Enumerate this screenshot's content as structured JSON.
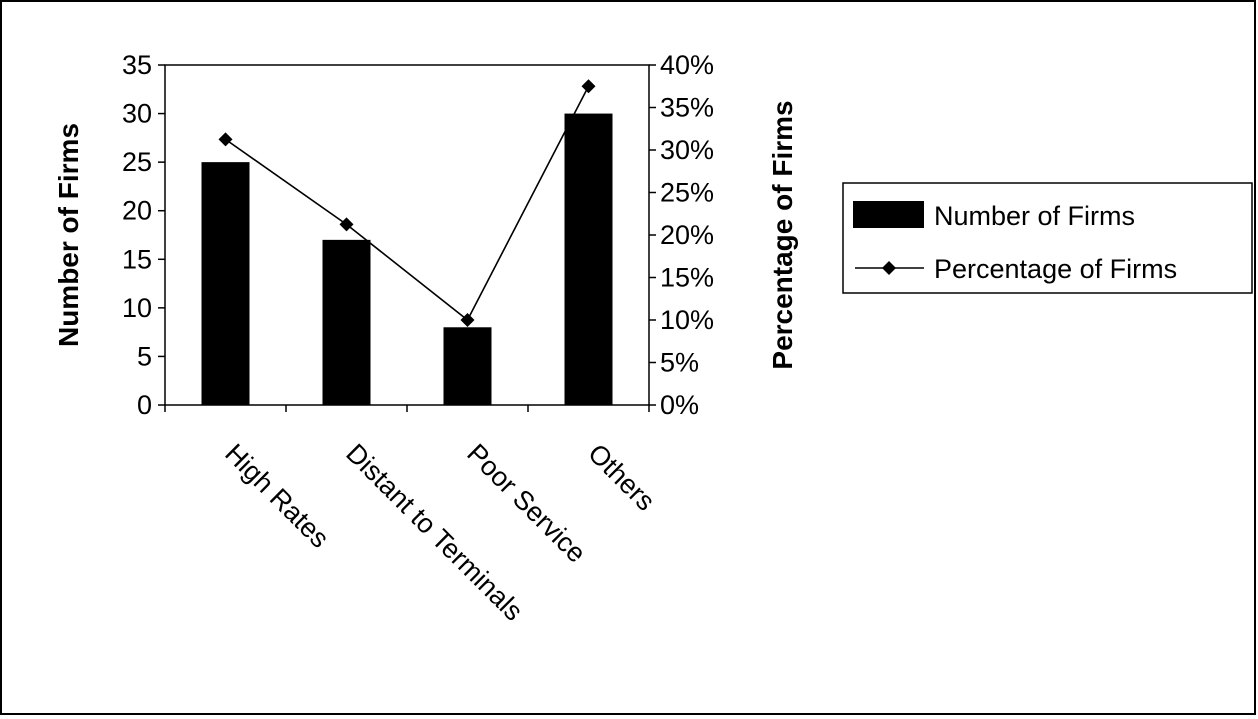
{
  "chart_data": {
    "type": "bar+line",
    "categories": [
      "High Rates",
      "Distant to Terminals",
      "Poor Service",
      "Others"
    ],
    "series": [
      {
        "name": "Number of Firms",
        "type": "bar",
        "axis": "left",
        "values": [
          25,
          17,
          8,
          30
        ],
        "color": "#000000"
      },
      {
        "name": "Percentage of Firms",
        "type": "line",
        "axis": "right",
        "values": [
          31.25,
          21.25,
          10,
          37.5
        ],
        "color": "#000000",
        "marker": "diamond"
      }
    ],
    "ylabel": "Number of Firms",
    "y2label": "Percentage of Firms",
    "ylim": [
      0,
      35
    ],
    "y_ticks": [
      "0",
      "5",
      "10",
      "15",
      "20",
      "25",
      "30",
      "35"
    ],
    "y2lim": [
      0,
      40
    ],
    "y2_ticks": [
      "0%",
      "5%",
      "10%",
      "15%",
      "20%",
      "25%",
      "30%",
      "35%",
      "40%"
    ],
    "legend": {
      "position": "right"
    },
    "grid": false
  }
}
